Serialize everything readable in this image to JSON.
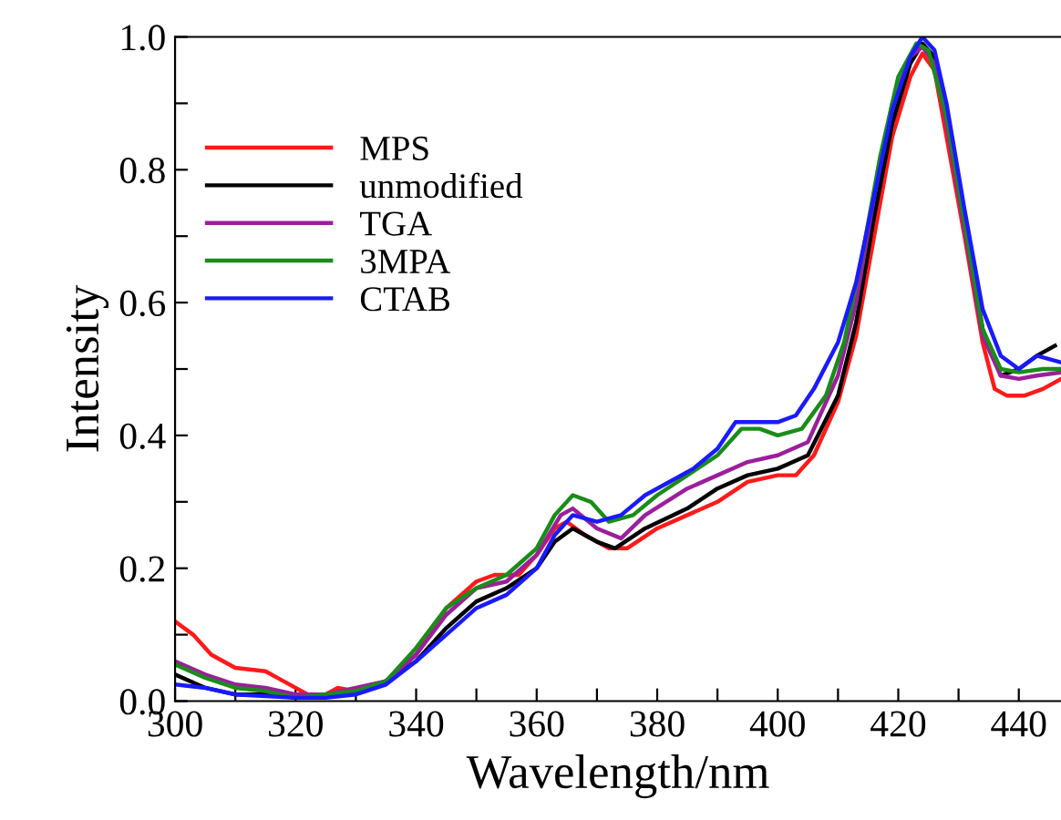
{
  "chart_data": {
    "type": "line",
    "xlabel": "Wavelength/nm",
    "ylabel": "Intensity",
    "xlim": [
      300,
      447
    ],
    "ylim": [
      0,
      1.0
    ],
    "xticks": [
      300,
      {
        "value": 310,
        "label": null
      },
      320,
      {
        "value": 330,
        "label": null
      },
      340,
      {
        "value": 350,
        "label": null
      },
      360,
      {
        "value": 370,
        "label": null
      },
      380,
      {
        "value": 390,
        "label": null
      },
      400,
      {
        "value": 410,
        "label": null
      },
      420,
      {
        "value": 430,
        "label": null
      },
      440
    ],
    "yticks": [
      {
        "value": 0,
        "label": "0.0"
      },
      {
        "value": 0.1,
        "label": null
      },
      0.2,
      {
        "value": 0.3,
        "label": null
      },
      0.4,
      {
        "value": 0.5,
        "label": null
      },
      0.6,
      {
        "value": 0.7,
        "label": null
      },
      0.8,
      {
        "value": 0.9,
        "label": null
      },
      {
        "value": 1.0,
        "label": "1.0"
      }
    ],
    "grid": false,
    "legend": "top left",
    "marker": "none",
    "line_style": "solid",
    "series": [
      {
        "name": "MPS",
        "color": "#ff1a1a",
        "x": [
          300,
          303,
          306,
          310,
          315,
          318,
          322,
          325,
          327,
          330,
          335,
          340,
          345,
          350,
          353,
          357,
          360,
          363,
          365,
          368,
          372,
          375,
          380,
          385,
          390,
          395,
          400,
          403,
          406,
          410,
          413,
          416,
          419,
          422,
          424,
          426,
          428,
          431,
          434,
          436,
          438,
          441,
          444,
          447
        ],
        "values": [
          0.12,
          0.1,
          0.07,
          0.05,
          0.045,
          0.03,
          0.01,
          0.01,
          0.02,
          0.015,
          0.03,
          0.07,
          0.14,
          0.18,
          0.19,
          0.19,
          0.22,
          0.26,
          0.27,
          0.25,
          0.23,
          0.23,
          0.26,
          0.28,
          0.3,
          0.33,
          0.34,
          0.34,
          0.37,
          0.45,
          0.55,
          0.7,
          0.85,
          0.94,
          0.975,
          0.95,
          0.85,
          0.7,
          0.54,
          0.47,
          0.46,
          0.46,
          0.47,
          0.485
        ]
      },
      {
        "name": "unmodified",
        "color": "#000000",
        "x": [
          300,
          305,
          310,
          315,
          320,
          325,
          330,
          335,
          340,
          345,
          350,
          355,
          360,
          363,
          366,
          370,
          373,
          378,
          385,
          390,
          395,
          400,
          405,
          410,
          413,
          416,
          419,
          422,
          424,
          426,
          428,
          431,
          434,
          437,
          440,
          443,
          446
        ],
        "values": [
          0.04,
          0.02,
          0.01,
          0.01,
          0.005,
          0.01,
          0.015,
          0.03,
          0.06,
          0.11,
          0.15,
          0.17,
          0.2,
          0.24,
          0.26,
          0.24,
          0.23,
          0.26,
          0.29,
          0.32,
          0.34,
          0.35,
          0.37,
          0.46,
          0.57,
          0.73,
          0.87,
          0.96,
          0.99,
          0.97,
          0.88,
          0.72,
          0.56,
          0.49,
          0.5,
          0.52,
          0.535
        ]
      },
      {
        "name": "TGA",
        "color": "#9b1f9b",
        "x": [
          300,
          305,
          310,
          315,
          320,
          325,
          330,
          335,
          340,
          345,
          350,
          355,
          360,
          364,
          366,
          370,
          374,
          378,
          385,
          390,
          395,
          400,
          405,
          410,
          413,
          416,
          419,
          422,
          424,
          426,
          428,
          431,
          434,
          437,
          440,
          443,
          447
        ],
        "values": [
          0.06,
          0.04,
          0.025,
          0.02,
          0.01,
          0.01,
          0.02,
          0.03,
          0.07,
          0.13,
          0.17,
          0.18,
          0.22,
          0.28,
          0.29,
          0.26,
          0.245,
          0.28,
          0.32,
          0.34,
          0.36,
          0.37,
          0.39,
          0.49,
          0.6,
          0.76,
          0.9,
          0.97,
          0.985,
          0.96,
          0.87,
          0.71,
          0.55,
          0.49,
          0.485,
          0.49,
          0.495
        ]
      },
      {
        "name": "3MPA",
        "color": "#1a8c1a",
        "x": [
          300,
          305,
          310,
          315,
          320,
          325,
          330,
          335,
          340,
          345,
          350,
          355,
          360,
          363,
          366,
          369,
          372,
          376,
          380,
          385,
          390,
          394,
          397,
          400,
          404,
          408,
          411,
          414,
          417,
          420,
          423,
          425,
          428,
          431,
          434,
          437,
          440,
          444,
          447
        ],
        "values": [
          0.055,
          0.035,
          0.02,
          0.015,
          0.005,
          0.01,
          0.015,
          0.03,
          0.08,
          0.14,
          0.17,
          0.19,
          0.23,
          0.28,
          0.31,
          0.3,
          0.27,
          0.28,
          0.31,
          0.34,
          0.37,
          0.41,
          0.41,
          0.4,
          0.41,
          0.46,
          0.54,
          0.67,
          0.82,
          0.94,
          0.99,
          0.98,
          0.88,
          0.72,
          0.56,
          0.5,
          0.495,
          0.5,
          0.5
        ]
      },
      {
        "name": "CTAB",
        "color": "#1a1aff",
        "x": [
          300,
          305,
          310,
          320,
          325,
          330,
          335,
          340,
          345,
          350,
          355,
          360,
          363,
          366,
          370,
          374,
          378,
          382,
          386,
          390,
          393,
          396,
          400,
          403,
          406,
          410,
          413,
          416,
          419,
          422,
          424,
          426,
          428,
          431,
          434,
          437,
          440,
          443,
          447
        ],
        "values": [
          0.025,
          0.02,
          0.01,
          0.005,
          0.005,
          0.01,
          0.025,
          0.06,
          0.1,
          0.14,
          0.16,
          0.2,
          0.25,
          0.28,
          0.27,
          0.28,
          0.31,
          0.33,
          0.35,
          0.38,
          0.42,
          0.42,
          0.42,
          0.43,
          0.47,
          0.54,
          0.63,
          0.76,
          0.89,
          0.97,
          1.0,
          0.98,
          0.9,
          0.74,
          0.59,
          0.52,
          0.5,
          0.52,
          0.51
        ]
      }
    ]
  }
}
